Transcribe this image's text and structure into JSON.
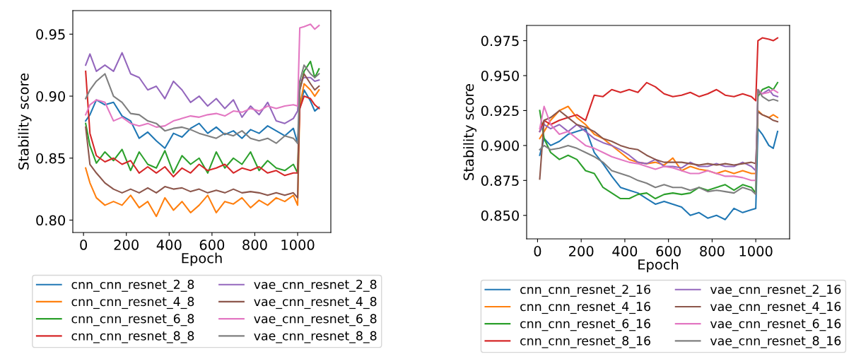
{
  "chart_data": [
    {
      "type": "line",
      "xlabel": "Epoch",
      "ylabel": "Stability score",
      "legend": "bottom",
      "grid": false,
      "xlim": [
        -50,
        1155
      ],
      "ylim": [
        0.79,
        0.969
      ],
      "xticks": [
        0,
        200,
        400,
        600,
        800,
        1000
      ],
      "yticks": [
        {
          "value": 0.8,
          "label": "0.80"
        },
        {
          "value": 0.85,
          "label": "0.85"
        },
        {
          "value": 0.9,
          "label": "0.90"
        },
        {
          "value": 0.95,
          "label": "0.95"
        }
      ],
      "x": [
        10,
        30,
        60,
        100,
        140,
        180,
        220,
        260,
        300,
        340,
        380,
        420,
        460,
        500,
        540,
        580,
        620,
        660,
        700,
        740,
        780,
        820,
        860,
        900,
        940,
        980,
        1000,
        1010,
        1030,
        1060,
        1080,
        1100
      ],
      "series": [
        {
          "name": "cnn_cnn_resnet_2_8",
          "color": "#1f77b4",
          "values": [
            0.88,
            0.885,
            0.897,
            0.893,
            0.895,
            0.884,
            0.88,
            0.866,
            0.871,
            0.864,
            0.858,
            0.87,
            0.867,
            0.874,
            0.878,
            0.87,
            0.875,
            0.869,
            0.872,
            0.866,
            0.873,
            0.87,
            0.876,
            0.872,
            0.868,
            0.874,
            0.862,
            0.89,
            0.905,
            0.896,
            0.888,
            0.891
          ]
        },
        {
          "name": "cnn_cnn_resnet_4_8",
          "color": "#ff7f0e",
          "values": [
            0.842,
            0.83,
            0.818,
            0.812,
            0.815,
            0.812,
            0.82,
            0.81,
            0.815,
            0.803,
            0.818,
            0.808,
            0.815,
            0.806,
            0.812,
            0.82,
            0.806,
            0.815,
            0.813,
            0.818,
            0.81,
            0.816,
            0.812,
            0.818,
            0.815,
            0.82,
            0.812,
            0.892,
            0.91,
            0.905,
            0.9,
            0.905
          ]
        },
        {
          "name": "cnn_cnn_resnet_6_8",
          "color": "#2ca02c",
          "values": [
            0.878,
            0.86,
            0.846,
            0.855,
            0.848,
            0.857,
            0.84,
            0.855,
            0.845,
            0.842,
            0.856,
            0.838,
            0.852,
            0.845,
            0.85,
            0.838,
            0.855,
            0.842,
            0.85,
            0.845,
            0.855,
            0.84,
            0.848,
            0.842,
            0.84,
            0.845,
            0.838,
            0.905,
            0.92,
            0.928,
            0.915,
            0.922
          ]
        },
        {
          "name": "cnn_cnn_resnet_8_8",
          "color": "#d62728",
          "values": [
            0.92,
            0.87,
            0.852,
            0.847,
            0.85,
            0.845,
            0.848,
            0.838,
            0.843,
            0.838,
            0.843,
            0.835,
            0.842,
            0.838,
            0.845,
            0.84,
            0.842,
            0.845,
            0.838,
            0.842,
            0.84,
            0.843,
            0.838,
            0.84,
            0.836,
            0.838,
            0.838,
            0.89,
            0.9,
            0.898,
            0.893,
            0.89
          ]
        },
        {
          "name": "vae_cnn_resnet_2_8",
          "color": "#9467bd",
          "values": [
            0.925,
            0.934,
            0.92,
            0.925,
            0.92,
            0.935,
            0.918,
            0.915,
            0.905,
            0.908,
            0.898,
            0.912,
            0.905,
            0.895,
            0.9,
            0.892,
            0.898,
            0.89,
            0.897,
            0.883,
            0.892,
            0.885,
            0.895,
            0.88,
            0.878,
            0.882,
            0.888,
            0.912,
            0.915,
            0.915,
            0.912,
            0.913
          ]
        },
        {
          "name": "vae_cnn_resnet_4_8",
          "color": "#8c564b",
          "values": [
            0.875,
            0.845,
            0.838,
            0.83,
            0.825,
            0.822,
            0.825,
            0.822,
            0.826,
            0.822,
            0.827,
            0.825,
            0.826,
            0.823,
            0.825,
            0.822,
            0.824,
            0.822,
            0.825,
            0.822,
            0.823,
            0.822,
            0.82,
            0.822,
            0.82,
            0.822,
            0.818,
            0.905,
            0.918,
            0.91,
            0.905,
            0.908
          ]
        },
        {
          "name": "vae_cnn_resnet_6_8",
          "color": "#e377c2",
          "values": [
            0.885,
            0.893,
            0.897,
            0.895,
            0.88,
            0.883,
            0.878,
            0.876,
            0.878,
            0.875,
            0.876,
            0.88,
            0.882,
            0.884,
            0.883,
            0.885,
            0.886,
            0.884,
            0.888,
            0.887,
            0.89,
            0.888,
            0.892,
            0.89,
            0.892,
            0.893,
            0.892,
            0.955,
            0.956,
            0.958,
            0.954,
            0.957
          ]
        },
        {
          "name": "vae_cnn_resnet_8_8",
          "color": "#7f7f7f",
          "values": [
            0.898,
            0.905,
            0.912,
            0.918,
            0.9,
            0.895,
            0.886,
            0.885,
            0.88,
            0.878,
            0.872,
            0.874,
            0.875,
            0.873,
            0.87,
            0.868,
            0.866,
            0.87,
            0.868,
            0.872,
            0.866,
            0.864,
            0.866,
            0.862,
            0.868,
            0.866,
            0.862,
            0.912,
            0.925,
            0.918,
            0.915,
            0.918
          ]
        }
      ]
    },
    {
      "type": "line",
      "xlabel": "Epoch",
      "ylabel": "Stability score",
      "legend": "bottom",
      "grid": false,
      "xlim": [
        -50,
        1155
      ],
      "ylim": [
        0.8332,
        0.9859
      ],
      "xticks": [
        0,
        200,
        400,
        600,
        800,
        1000
      ],
      "yticks": [
        {
          "value": 0.85,
          "label": "0.850"
        },
        {
          "value": 0.875,
          "label": "0.875"
        },
        {
          "value": 0.9,
          "label": "0.900"
        },
        {
          "value": 0.925,
          "label": "0.925"
        },
        {
          "value": 0.95,
          "label": "0.950"
        },
        {
          "value": 0.975,
          "label": "0.975"
        }
      ],
      "x": [
        10,
        30,
        60,
        100,
        140,
        180,
        220,
        260,
        300,
        340,
        380,
        420,
        460,
        500,
        540,
        580,
        620,
        660,
        700,
        740,
        780,
        820,
        860,
        900,
        940,
        980,
        1000,
        1010,
        1030,
        1060,
        1080,
        1100
      ],
      "series": [
        {
          "name": "cnn_cnn_resnet_2_16",
          "color": "#1f77b4",
          "values": [
            0.893,
            0.905,
            0.9,
            0.903,
            0.908,
            0.91,
            0.912,
            0.895,
            0.887,
            0.878,
            0.87,
            0.868,
            0.866,
            0.862,
            0.858,
            0.86,
            0.858,
            0.856,
            0.85,
            0.852,
            0.848,
            0.85,
            0.847,
            0.855,
            0.852,
            0.854,
            0.855,
            0.912,
            0.908,
            0.9,
            0.898,
            0.91
          ]
        },
        {
          "name": "cnn_cnn_resnet_4_16",
          "color": "#ff7f0e",
          "values": [
            0.905,
            0.91,
            0.918,
            0.925,
            0.928,
            0.92,
            0.915,
            0.908,
            0.905,
            0.9,
            0.895,
            0.89,
            0.888,
            0.887,
            0.888,
            0.886,
            0.891,
            0.882,
            0.885,
            0.883,
            0.882,
            0.88,
            0.882,
            0.88,
            0.882,
            0.88,
            0.88,
            0.925,
            0.922,
            0.92,
            0.922,
            0.92
          ]
        },
        {
          "name": "cnn_cnn_resnet_6_16",
          "color": "#2ca02c",
          "values": [
            0.925,
            0.905,
            0.895,
            0.89,
            0.893,
            0.89,
            0.882,
            0.88,
            0.87,
            0.866,
            0.862,
            0.862,
            0.865,
            0.866,
            0.862,
            0.865,
            0.866,
            0.865,
            0.866,
            0.87,
            0.868,
            0.87,
            0.872,
            0.868,
            0.872,
            0.87,
            0.866,
            0.935,
            0.94,
            0.942,
            0.94,
            0.945
          ]
        },
        {
          "name": "cnn_cnn_resnet_8_16",
          "color": "#d62728",
          "values": [
            0.91,
            0.918,
            0.915,
            0.918,
            0.92,
            0.922,
            0.918,
            0.936,
            0.935,
            0.94,
            0.938,
            0.94,
            0.938,
            0.945,
            0.942,
            0.937,
            0.935,
            0.936,
            0.938,
            0.935,
            0.937,
            0.94,
            0.936,
            0.935,
            0.937,
            0.935,
            0.932,
            0.975,
            0.977,
            0.976,
            0.975,
            0.977
          ]
        },
        {
          "name": "vae_cnn_resnet_2_16",
          "color": "#9467bd",
          "values": [
            0.91,
            0.915,
            0.912,
            0.915,
            0.91,
            0.915,
            0.91,
            0.905,
            0.902,
            0.9,
            0.897,
            0.893,
            0.888,
            0.887,
            0.89,
            0.885,
            0.885,
            0.884,
            0.888,
            0.885,
            0.885,
            0.887,
            0.885,
            0.885,
            0.888,
            0.885,
            0.882,
            0.938,
            0.937,
            0.94,
            0.936,
            0.935
          ]
        },
        {
          "name": "vae_cnn_resnet_4_16",
          "color": "#8c564b",
          "values": [
            0.876,
            0.918,
            0.92,
            0.925,
            0.92,
            0.915,
            0.913,
            0.91,
            0.905,
            0.903,
            0.9,
            0.898,
            0.897,
            0.893,
            0.89,
            0.888,
            0.888,
            0.888,
            0.887,
            0.886,
            0.887,
            0.886,
            0.887,
            0.886,
            0.887,
            0.888,
            0.887,
            0.924,
            0.922,
            0.92,
            0.918,
            0.917
          ]
        },
        {
          "name": "vae_cnn_resnet_6_16",
          "color": "#e377c2",
          "values": [
            0.912,
            0.928,
            0.915,
            0.908,
            0.91,
            0.905,
            0.9,
            0.898,
            0.895,
            0.892,
            0.89,
            0.888,
            0.887,
            0.885,
            0.883,
            0.885,
            0.884,
            0.882,
            0.88,
            0.88,
            0.882,
            0.88,
            0.878,
            0.878,
            0.877,
            0.875,
            0.875,
            0.94,
            0.937,
            0.938,
            0.94,
            0.938
          ]
        },
        {
          "name": "vae_cnn_resnet_8_16",
          "color": "#7f7f7f",
          "values": [
            0.897,
            0.9,
            0.897,
            0.898,
            0.9,
            0.898,
            0.895,
            0.892,
            0.888,
            0.882,
            0.88,
            0.878,
            0.875,
            0.873,
            0.87,
            0.872,
            0.87,
            0.87,
            0.868,
            0.87,
            0.867,
            0.868,
            0.867,
            0.866,
            0.87,
            0.868,
            0.865,
            0.94,
            0.935,
            0.932,
            0.933,
            0.932
          ]
        }
      ]
    }
  ]
}
